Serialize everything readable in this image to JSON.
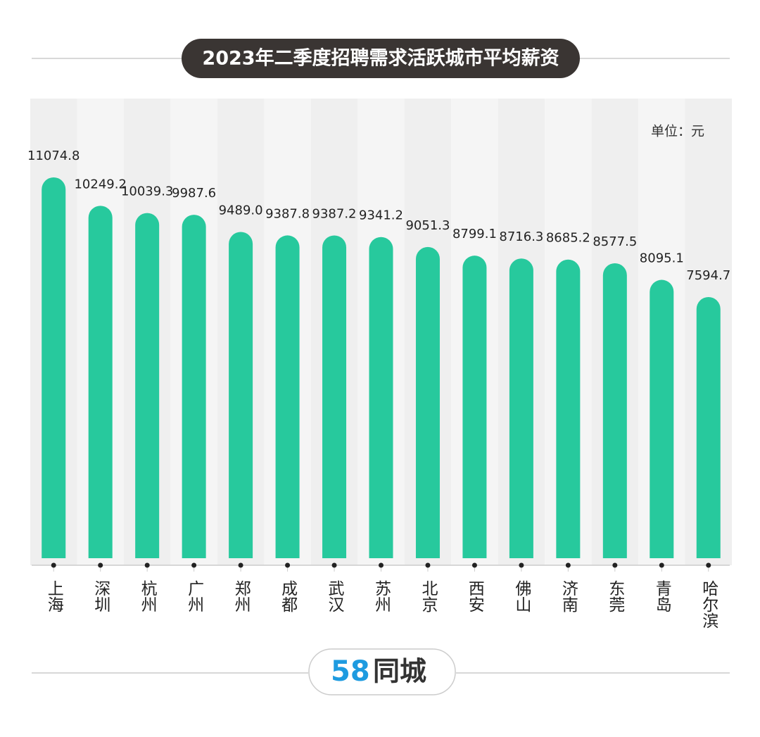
{
  "chart_data": {
    "type": "bar",
    "title": "2023年二季度招聘需求活跃城市平均薪资",
    "unit": "单位：元",
    "categories": [
      "上海",
      "深圳",
      "杭州",
      "广州",
      "郑州",
      "成都",
      "武汉",
      "苏州",
      "北京",
      "西安",
      "佛山",
      "济南",
      "东莞",
      "青岛",
      "哈尔滨"
    ],
    "values": [
      11074.8,
      10249.2,
      10039.3,
      9987.6,
      9489.0,
      9387.8,
      9387.2,
      9341.2,
      9051.3,
      8799.1,
      8716.3,
      8685.2,
      8577.5,
      8095.1,
      7594.7
    ],
    "value_labels": [
      "11074.8",
      "10249.2",
      "10039.3",
      "9987.6",
      "9489.0",
      "9387.8",
      "9387.2",
      "9341.2",
      "9051.3",
      "8799.1",
      "8716.3",
      "8685.2",
      "8577.5",
      "8095.1",
      "7594.7"
    ],
    "color": "#27c99d"
  },
  "logo": {
    "digits": "58",
    "name": "同城"
  }
}
